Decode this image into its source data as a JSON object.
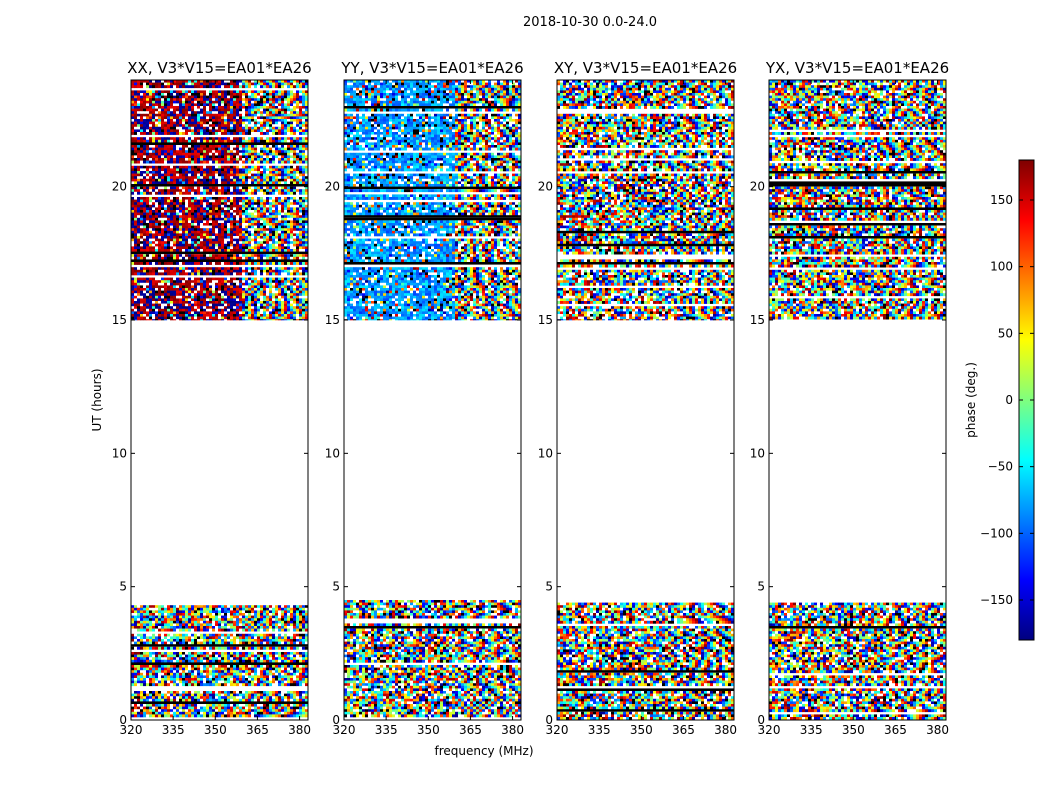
{
  "suptitle": "2018-10-30 0.0-24.0",
  "chart_data": [
    {
      "type": "heatmap",
      "title": "XX, V3*V15=EA01*EA26",
      "xlabel": "",
      "ylabel": "UT (hours)",
      "xlim": [
        320,
        383
      ],
      "ylim": [
        0,
        24
      ],
      "xticks": [
        320,
        335,
        350,
        365,
        380
      ],
      "yticks": [
        0,
        5,
        10,
        15,
        20
      ],
      "data_coverage_hours": [
        [
          0,
          4.5
        ],
        [
          15,
          24
        ]
      ],
      "dominant_phase_low_freq_deg": 170
    },
    {
      "type": "heatmap",
      "title": "YY, V3*V15=EA01*EA26",
      "xlabel": "frequency (MHz)",
      "ylabel": "",
      "xlim": [
        320,
        383
      ],
      "ylim": [
        0,
        24
      ],
      "xticks": [
        320,
        335,
        350,
        365,
        380
      ],
      "yticks": [
        0,
        5,
        10,
        15,
        20
      ],
      "data_coverage_hours": [
        [
          0,
          4.5
        ],
        [
          15,
          24
        ]
      ],
      "dominant_phase_low_freq_deg": -80
    },
    {
      "type": "heatmap",
      "title": "XY, V3*V15=EA01*EA26",
      "xlabel": "",
      "ylabel": "",
      "xlim": [
        320,
        383
      ],
      "ylim": [
        0,
        24
      ],
      "xticks": [
        320,
        335,
        350,
        365,
        380
      ],
      "yticks": [
        0,
        5,
        10,
        15,
        20
      ],
      "data_coverage_hours": [
        [
          0,
          4.5
        ],
        [
          15,
          24
        ]
      ]
    },
    {
      "type": "heatmap",
      "title": "YX, V3*V15=EA01*EA26",
      "xlabel": "",
      "ylabel": "",
      "xlim": [
        320,
        383
      ],
      "ylim": [
        0,
        24
      ],
      "xticks": [
        320,
        335,
        350,
        365,
        380
      ],
      "yticks": [
        0,
        5,
        10,
        15,
        20
      ],
      "data_coverage_hours": [
        [
          0,
          4.5
        ],
        [
          15,
          24
        ]
      ]
    }
  ],
  "colorbar": {
    "label": "phase (deg.)",
    "range": [
      -180,
      180
    ],
    "ticks": [
      150,
      100,
      50,
      0,
      -50,
      -100,
      -150
    ],
    "tick_labels": [
      "150",
      "100",
      "50",
      "0",
      "−50",
      "−100",
      "−150"
    ],
    "colormap": "jet",
    "colors": [
      "#00007f",
      "#0000ff",
      "#007fff",
      "#00ffff",
      "#7fff7f",
      "#ffff00",
      "#ff7f00",
      "#ff0000",
      "#7f0000"
    ]
  }
}
